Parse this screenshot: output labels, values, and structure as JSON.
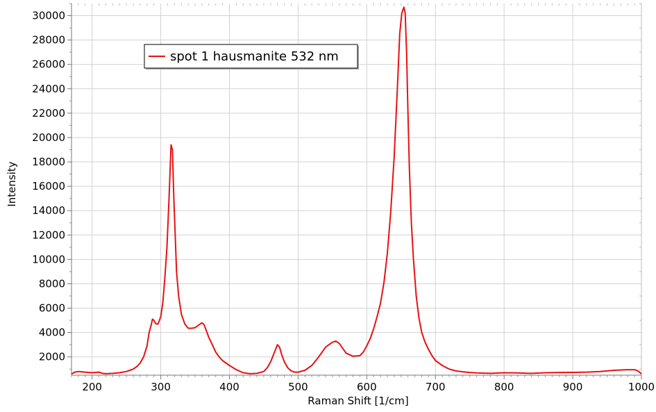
{
  "chart_data": {
    "type": "line",
    "title": "",
    "xlabel": "Raman Shift [1/cm]",
    "ylabel": "Intensity",
    "xlim": [
      170,
      1000
    ],
    "ylim": [
      500,
      31000
    ],
    "xticks": [
      200,
      300,
      400,
      500,
      600,
      700,
      800,
      900,
      1000
    ],
    "yticks": [
      2000,
      4000,
      6000,
      8000,
      10000,
      12000,
      14000,
      16000,
      18000,
      20000,
      22000,
      24000,
      26000,
      28000,
      30000
    ],
    "grid": true,
    "legend_position": "top-left",
    "series": [
      {
        "name": "spot 1 hausmanite 532 nm",
        "color": "#e81010",
        "x": [
          170,
          175,
          180,
          190,
          200,
          210,
          215,
          220,
          230,
          240,
          250,
          255,
          260,
          265,
          270,
          275,
          280,
          283,
          286,
          288,
          290,
          293,
          296,
          300,
          303,
          306,
          309,
          312,
          315,
          317,
          319,
          321,
          323,
          326,
          330,
          335,
          340,
          345,
          350,
          355,
          360,
          363,
          366,
          370,
          375,
          380,
          385,
          390,
          400,
          410,
          420,
          430,
          440,
          450,
          455,
          460,
          465,
          470,
          473,
          476,
          480,
          485,
          490,
          495,
          500,
          510,
          520,
          530,
          540,
          550,
          555,
          560,
          565,
          570,
          580,
          590,
          595,
          600,
          605,
          610,
          615,
          620,
          625,
          630,
          635,
          640,
          645,
          648,
          651,
          654,
          656,
          658,
          660,
          662,
          665,
          668,
          672,
          676,
          680,
          685,
          690,
          695,
          700,
          710,
          720,
          730,
          740,
          750,
          760,
          780,
          800,
          820,
          840,
          860,
          880,
          900,
          920,
          940,
          960,
          980,
          990,
          995,
          1000
        ],
        "y": [
          600,
          750,
          800,
          750,
          700,
          750,
          650,
          620,
          650,
          700,
          800,
          900,
          1000,
          1200,
          1500,
          2000,
          2900,
          4000,
          4600,
          5100,
          5000,
          4700,
          4700,
          5300,
          6500,
          8500,
          11000,
          15000,
          19400,
          19000,
          15000,
          12000,
          9000,
          7000,
          5500,
          4700,
          4350,
          4350,
          4400,
          4600,
          4800,
          4650,
          4200,
          3600,
          3000,
          2400,
          2000,
          1700,
          1300,
          950,
          700,
          620,
          650,
          800,
          1100,
          1600,
          2300,
          3000,
          2800,
          2200,
          1600,
          1100,
          850,
          750,
          750,
          900,
          1300,
          2000,
          2800,
          3200,
          3300,
          3100,
          2700,
          2300,
          2050,
          2100,
          2400,
          2900,
          3500,
          4300,
          5300,
          6400,
          8100,
          10500,
          14000,
          18500,
          24500,
          28500,
          30200,
          30700,
          30200,
          27000,
          22000,
          17500,
          13000,
          10000,
          7000,
          5200,
          4000,
          3200,
          2600,
          2100,
          1700,
          1300,
          1000,
          850,
          780,
          720,
          680,
          650,
          700,
          680,
          650,
          700,
          720,
          730,
          750,
          800,
          900,
          950,
          950,
          850,
          600
        ]
      }
    ]
  }
}
